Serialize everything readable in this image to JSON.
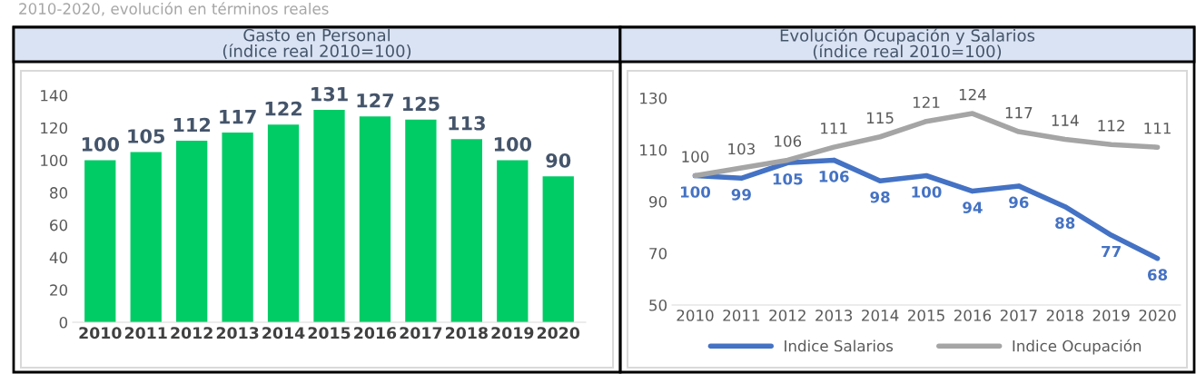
{
  "chart_data": [
    {
      "type": "bar",
      "title": "Gasto en Personal\n(índice real 2010=100)",
      "annotations": [
        "2010-2020, evolución en términos reales"
      ],
      "categories": [
        "2010",
        "2011",
        "2012",
        "2013",
        "2014",
        "2015",
        "2016",
        "2017",
        "2018",
        "2019",
        "2020"
      ],
      "values": [
        100,
        105,
        112,
        117,
        122,
        131,
        127,
        125,
        113,
        100,
        90
      ],
      "color": "#00cc66",
      "ylim": [
        0,
        140
      ],
      "yticks": [
        0,
        20,
        40,
        60,
        80,
        100,
        120,
        140
      ],
      "data_labels": true,
      "grid": false,
      "legend": false
    },
    {
      "type": "line",
      "title": "Evolución Ocupación y Salarios\n(índice real 2010=100)",
      "categories": [
        "2010",
        "2011",
        "2012",
        "2013",
        "2014",
        "2015",
        "2016",
        "2017",
        "2018",
        "2019",
        "2020"
      ],
      "series": [
        {
          "name": "Indice Salarios",
          "color": "#4472c4",
          "values": [
            100,
            99,
            105,
            106,
            98,
            100,
            94,
            96,
            88,
            77,
            68
          ]
        },
        {
          "name": "Indice Ocupación",
          "color": "#a5a5a5",
          "values": [
            100,
            103,
            106,
            111,
            115,
            121,
            124,
            117,
            114,
            112,
            111
          ]
        }
      ],
      "ylim": [
        50,
        130
      ],
      "yticks": [
        50,
        70,
        90,
        110,
        130
      ],
      "data_labels": true,
      "grid": false,
      "legend": "bottom",
      "marker": "none",
      "line_style": "solid"
    }
  ]
}
